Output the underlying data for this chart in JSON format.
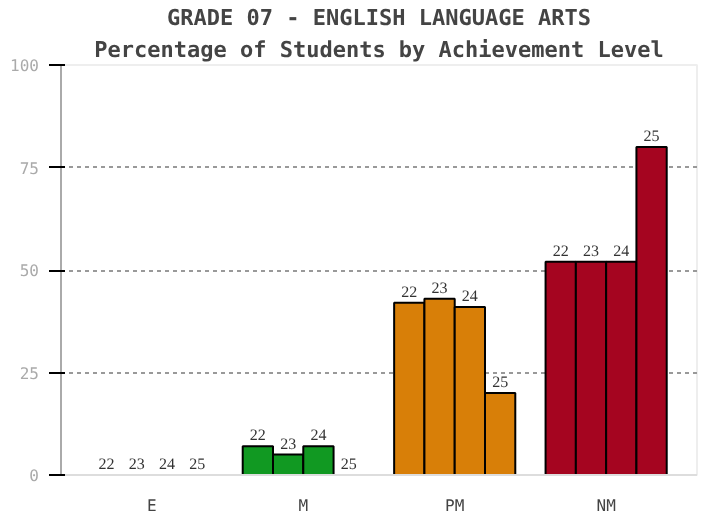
{
  "chart_data": {
    "type": "bar",
    "title": "GRADE 07 - ENGLISH LANGUAGE ARTS",
    "subtitle": "Percentage of Students by Achievement Level",
    "categories": [
      "E",
      "M",
      "PM",
      "NM"
    ],
    "series": [
      {
        "name": "22",
        "colors": [
          null,
          "#119922",
          "#d87f08",
          "#a50520"
        ],
        "values": [
          0,
          7,
          42,
          52
        ]
      },
      {
        "name": "23",
        "colors": [
          null,
          "#119922",
          "#d87f08",
          "#a50520"
        ],
        "values": [
          0,
          5,
          43,
          52
        ]
      },
      {
        "name": "24",
        "colors": [
          null,
          "#119922",
          "#d87f08",
          "#a50520"
        ],
        "values": [
          0,
          7,
          41,
          52
        ]
      },
      {
        "name": "25",
        "colors": [
          null,
          null,
          "#d87f08",
          "#a50520"
        ],
        "values": [
          0,
          0,
          20,
          80
        ]
      }
    ],
    "ylim": [
      0,
      100
    ],
    "yticks": [
      0,
      25,
      50,
      75,
      100
    ],
    "grid": "y"
  }
}
